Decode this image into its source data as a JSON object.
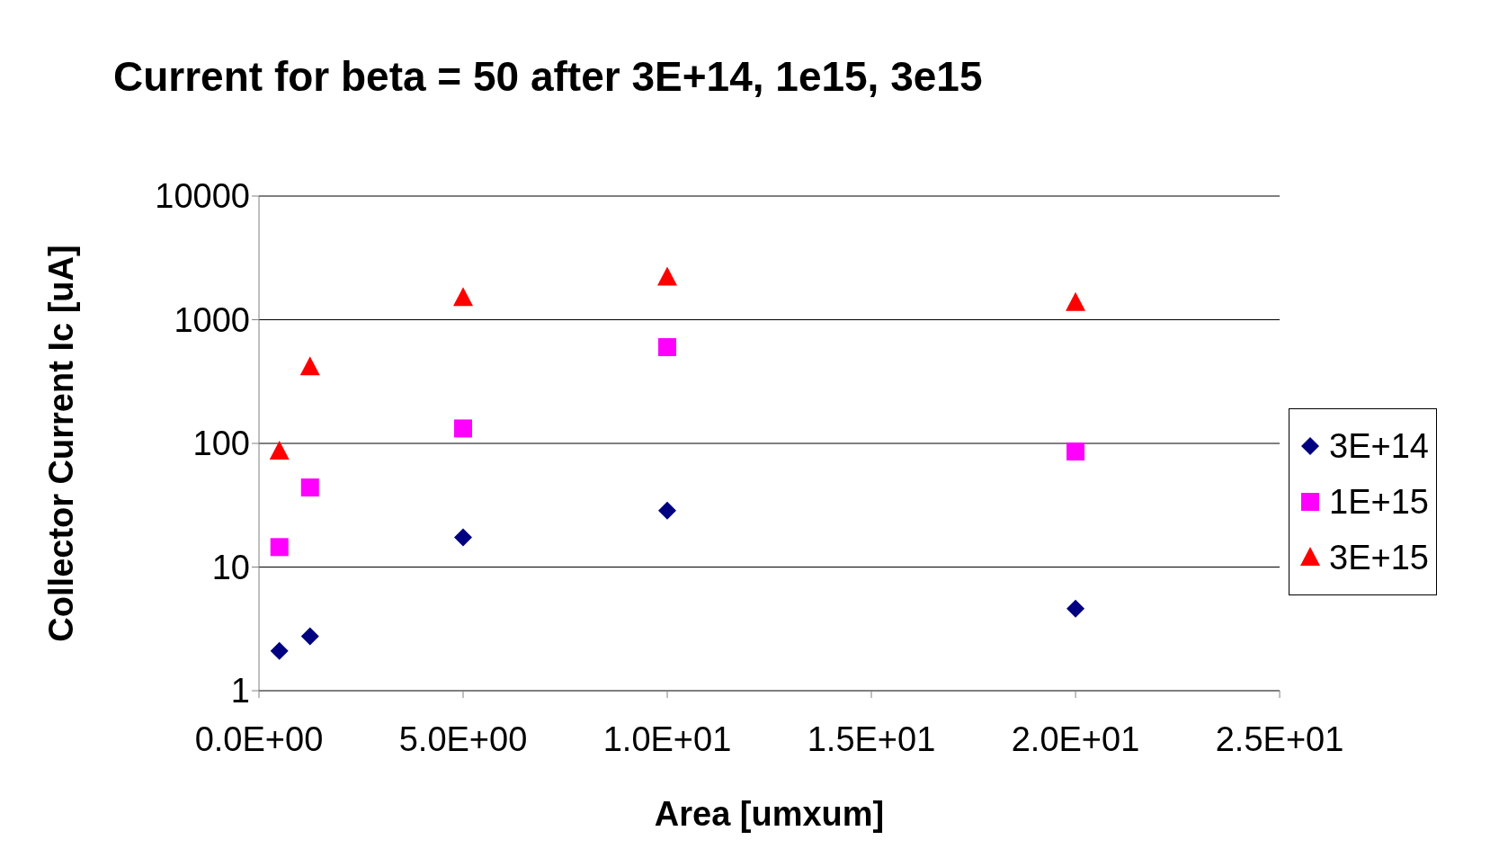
{
  "chart_data": {
    "type": "scatter",
    "title": "Current for beta = 50 after 3E+14, 1e15, 3e15",
    "xlabel": "Area [umxum]",
    "ylabel": "Collector Current Ic [uA]",
    "series": [
      {
        "name": "3E+14",
        "color": "#000080",
        "marker": "diamond",
        "x": [
          0.5,
          1.25,
          5,
          10,
          20
        ],
        "values": [
          2.1,
          2.75,
          17.4,
          28.6,
          4.6
        ]
      },
      {
        "name": "1E+15",
        "color": "#ff00ff",
        "marker": "square",
        "x": [
          0.5,
          1.25,
          5,
          10,
          20
        ],
        "values": [
          14.5,
          44,
          132,
          600,
          86
        ]
      },
      {
        "name": "3E+15",
        "color": "#ff0000",
        "marker": "triangle",
        "x": [
          0.5,
          1.25,
          5,
          10,
          20
        ],
        "values": [
          86,
          413,
          1500,
          2200,
          1370
        ]
      }
    ],
    "xlim": [
      0,
      25
    ],
    "xticks": [
      {
        "value": 0,
        "label": "0.0E+00"
      },
      {
        "value": 5,
        "label": "5.0E+00"
      },
      {
        "value": 10,
        "label": "1.0E+01"
      },
      {
        "value": 15,
        "label": "1.5E+01"
      },
      {
        "value": 20,
        "label": "2.0E+01"
      },
      {
        "value": 25,
        "label": "2.5E+01"
      }
    ],
    "ylim": [
      1,
      10000
    ],
    "yticks": [
      1,
      10,
      100,
      1000,
      10000
    ],
    "log": "y",
    "grid": "y",
    "legend": "right"
  }
}
